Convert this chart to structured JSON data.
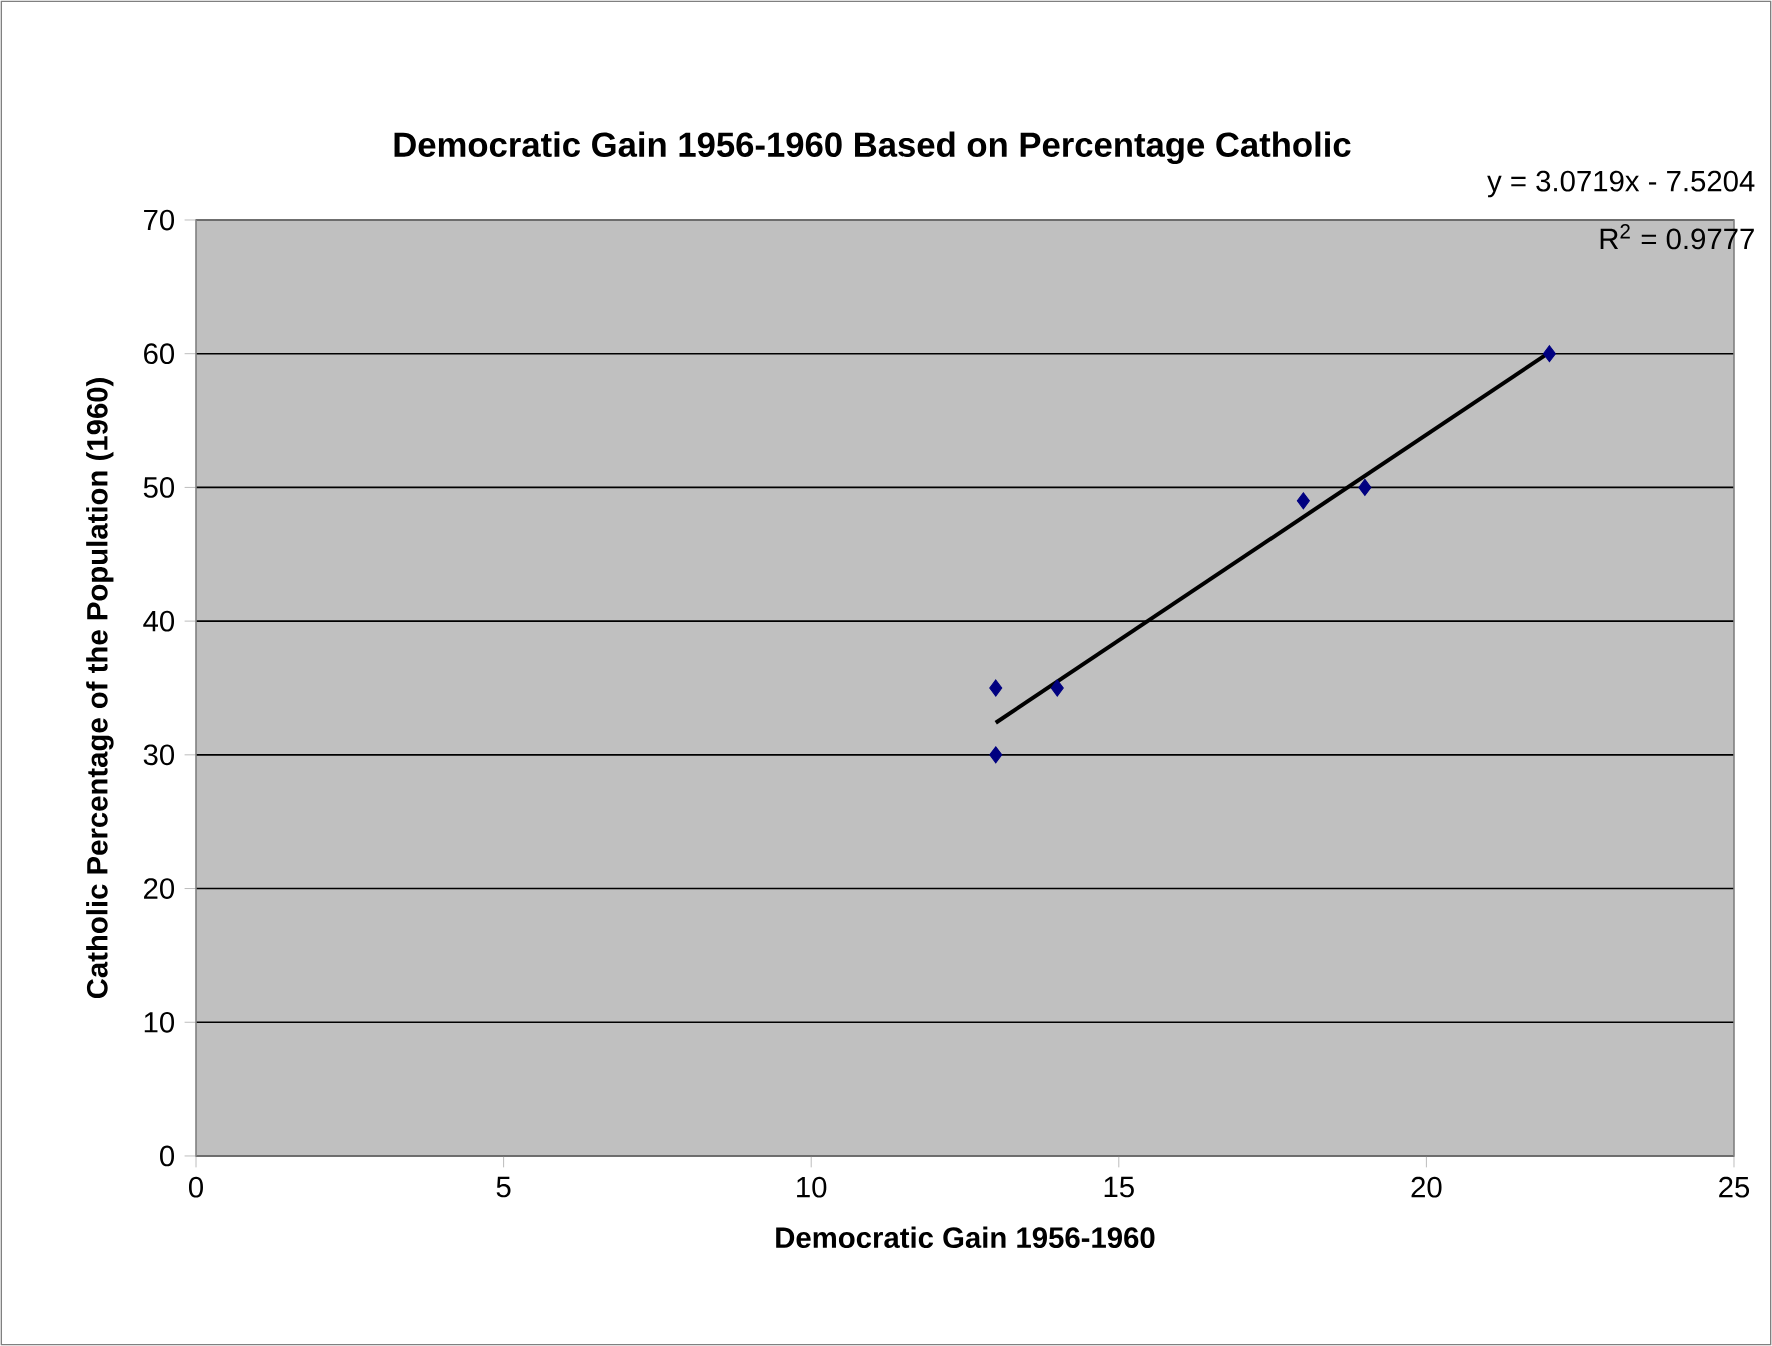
{
  "chart_data": {
    "type": "scatter",
    "title": "Democratic Gain 1956-1960 Based on Percentage Catholic",
    "xlabel": "Democratic Gain 1956-1960",
    "ylabel": "Catholic Percentage of the Population (1960)",
    "annotations": [
      "y = 3.0719x - 7.5204",
      "R$^{2}$ = 0.9777"
    ],
    "series": [
      {
        "marker": "diamond",
        "color": "#000080",
        "x": [
          13,
          13,
          14,
          18,
          19,
          22
        ],
        "values": [
          35,
          30,
          35,
          49,
          50,
          60
        ]
      },
      {
        "type": "line",
        "marker": "none",
        "color": "#000000",
        "x": [
          13,
          22
        ],
        "values": [
          32.4,
          60.1
        ]
      }
    ],
    "xlim": [
      0,
      25
    ],
    "xticks": [
      0,
      5,
      10,
      15,
      20,
      25
    ],
    "ylim": [
      0,
      70
    ],
    "yticks": [
      0,
      10,
      20,
      30,
      40,
      50,
      60,
      70
    ],
    "grid": "y"
  }
}
